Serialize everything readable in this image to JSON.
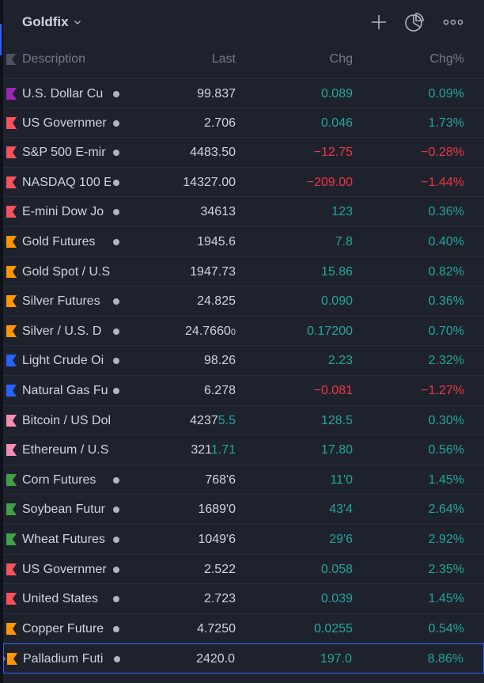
{
  "header": {
    "title": "Goldfix",
    "icons": [
      "add-symbol-icon",
      "pie-chart-icon",
      "more-icon"
    ]
  },
  "columns": {
    "description": "Description",
    "last": "Last",
    "chg": "Chg",
    "chg_pct": "Chg%"
  },
  "colors": {
    "up": "#26a69a",
    "down": "#f23645",
    "selection": "#2962ff"
  },
  "rows": [
    {
      "desc": "U.S. Dollar Cu",
      "dot": true,
      "flag_color": "#9c27b0",
      "last": "99.837",
      "chg": "0.089",
      "pct": "0.09%",
      "dir": "up"
    },
    {
      "desc": "US Governmer",
      "dot": true,
      "flag_color": "#f7525f",
      "last": "2.706",
      "chg": "0.046",
      "pct": "1.73%",
      "dir": "up"
    },
    {
      "desc": "S&P 500 E-mir",
      "dot": true,
      "flag_color": "#f7525f",
      "last": "4483.50",
      "chg": "−12.75",
      "pct": "−0.28%",
      "dir": "down"
    },
    {
      "desc": "NASDAQ 100 E",
      "dot": true,
      "flag_color": "#f7525f",
      "last": "14327.00",
      "chg": "−209.00",
      "pct": "−1.44%",
      "dir": "down"
    },
    {
      "desc": "E-mini Dow Jo",
      "dot": true,
      "flag_color": "#f7525f",
      "last": "34613",
      "chg": "123",
      "pct": "0.36%",
      "dir": "up"
    },
    {
      "desc": "Gold Futures",
      "dot": true,
      "flag_color": "#ff9800",
      "last": "1945.6",
      "chg": "7.8",
      "pct": "0.40%",
      "dir": "up"
    },
    {
      "desc": "Gold Spot / U.S",
      "dot": false,
      "flag_color": "#ff9800",
      "last": "1947.73",
      "chg": "15.86",
      "pct": "0.82%",
      "dir": "up"
    },
    {
      "desc": "Silver Futures",
      "dot": true,
      "flag_color": "#ff9800",
      "last": "24.825",
      "chg": "0.090",
      "pct": "0.36%",
      "dir": "up"
    },
    {
      "desc": "Silver / U.S. D",
      "dot": true,
      "flag_color": "#ff9800",
      "last": "24.7660",
      "last_sup": "0",
      "chg": "0.17200",
      "pct": "0.70%",
      "dir": "up"
    },
    {
      "desc": "Light Crude Oi",
      "dot": true,
      "flag_color": "#2962ff",
      "last": "98.26",
      "chg": "2.23",
      "pct": "2.32%",
      "dir": "up"
    },
    {
      "desc": "Natural Gas Fu",
      "dot": true,
      "flag_color": "#2962ff",
      "last": "6.278",
      "chg": "−0.081",
      "pct": "−1.27%",
      "dir": "down"
    },
    {
      "desc": "Bitcoin / US Dol",
      "dot": false,
      "flag_color": "#f48fb1",
      "last": "4237",
      "last_hl": "5.5",
      "chg": "128.5",
      "pct": "0.30%",
      "dir": "up"
    },
    {
      "desc": "Ethereum / U.S",
      "dot": false,
      "flag_color": "#f48fb1",
      "last": "321",
      "last_hl": "1.71",
      "chg": "17.80",
      "pct": "0.56%",
      "dir": "up"
    },
    {
      "desc": "Corn Futures",
      "dot": true,
      "flag_color": "#43a047",
      "last": "768'6",
      "chg": "11'0",
      "pct": "1.45%",
      "dir": "up"
    },
    {
      "desc": "Soybean Futur",
      "dot": true,
      "flag_color": "#43a047",
      "last": "1689'0",
      "chg": "43'4",
      "pct": "2.64%",
      "dir": "up"
    },
    {
      "desc": "Wheat Futures",
      "dot": true,
      "flag_color": "#43a047",
      "last": "1049'6",
      "chg": "29'6",
      "pct": "2.92%",
      "dir": "up"
    },
    {
      "desc": "US Governmer",
      "dot": true,
      "flag_color": "#f7525f",
      "last": "2.522",
      "chg": "0.058",
      "pct": "2.35%",
      "dir": "up"
    },
    {
      "desc": "United States",
      "dot": true,
      "flag_color": "#f7525f",
      "last": "2.723",
      "chg": "0.039",
      "pct": "1.45%",
      "dir": "up"
    },
    {
      "desc": "Copper Future",
      "dot": true,
      "flag_color": "#ff9800",
      "last": "4.7250",
      "chg": "0.0255",
      "pct": "0.54%",
      "dir": "up"
    },
    {
      "desc": "Palladium Futi",
      "dot": true,
      "flag_color": "#ff9800",
      "last": "2420.0",
      "chg": "197.0",
      "pct": "8.86%",
      "dir": "up",
      "selected": true
    }
  ]
}
